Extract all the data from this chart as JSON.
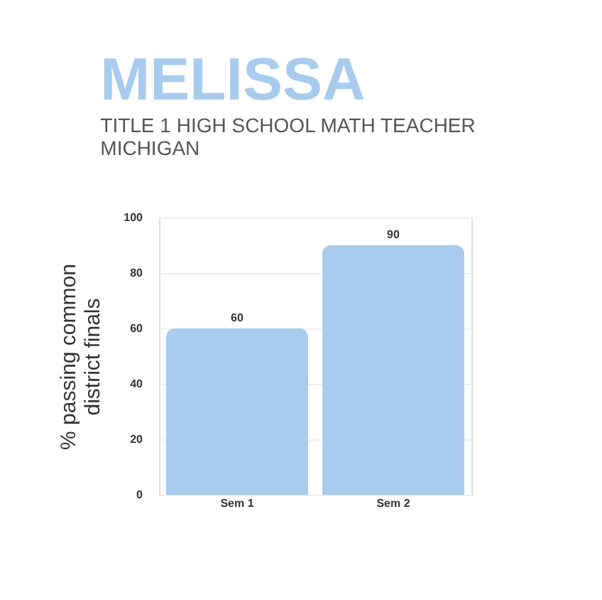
{
  "chart_data": {
    "type": "bar",
    "title": "MELISSA",
    "subtitle": "TITLE 1 HIGH SCHOOL MATH TEACHER MICHIGAN",
    "ylabel": "% passing common district finals",
    "categories": [
      "Sem 1",
      "Sem 2"
    ],
    "values": [
      60,
      90
    ],
    "color": "#a8cbee",
    "ylim": [
      0,
      100
    ],
    "yticks": [
      0,
      20,
      40,
      60,
      80,
      100
    ],
    "grid": "y",
    "data_labels": true
  }
}
